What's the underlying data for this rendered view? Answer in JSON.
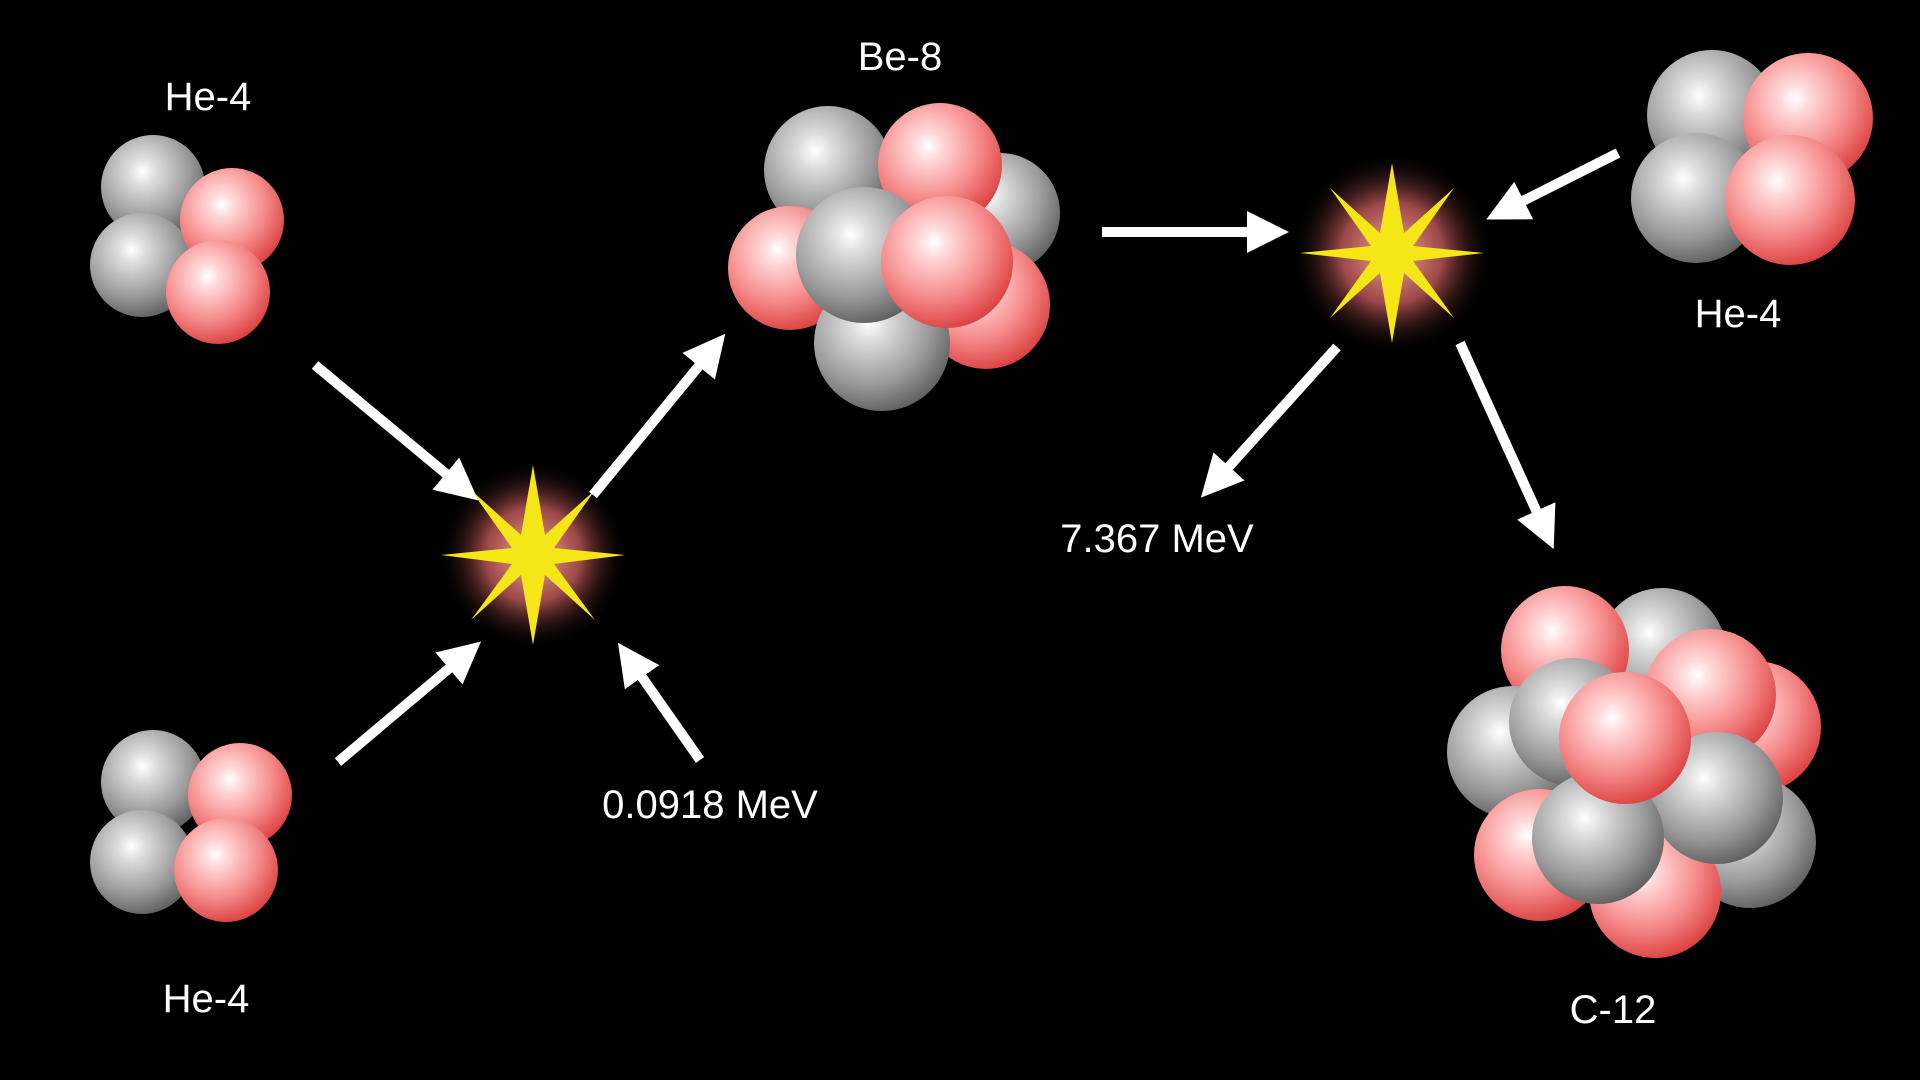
{
  "labels": {
    "he4_top_left": "He-4",
    "he4_bottom_left": "He-4",
    "be8": "Be-8",
    "he4_right": "He-4",
    "c12": "C-12",
    "energy_first": "0.0918 MeV",
    "energy_second": "7.367 MeV"
  },
  "colors": {
    "background": "#000000",
    "proton": "#f07070",
    "neutron": "#8c8c8c",
    "arrow": "#ffffff",
    "flash_star": "#f5e617",
    "flash_glow": "#ff8080",
    "text": "#ffffff"
  },
  "legend_semantics": {
    "red_sphere": "proton",
    "gray_sphere": "neutron",
    "yellow_star": "fusion-flash"
  }
}
